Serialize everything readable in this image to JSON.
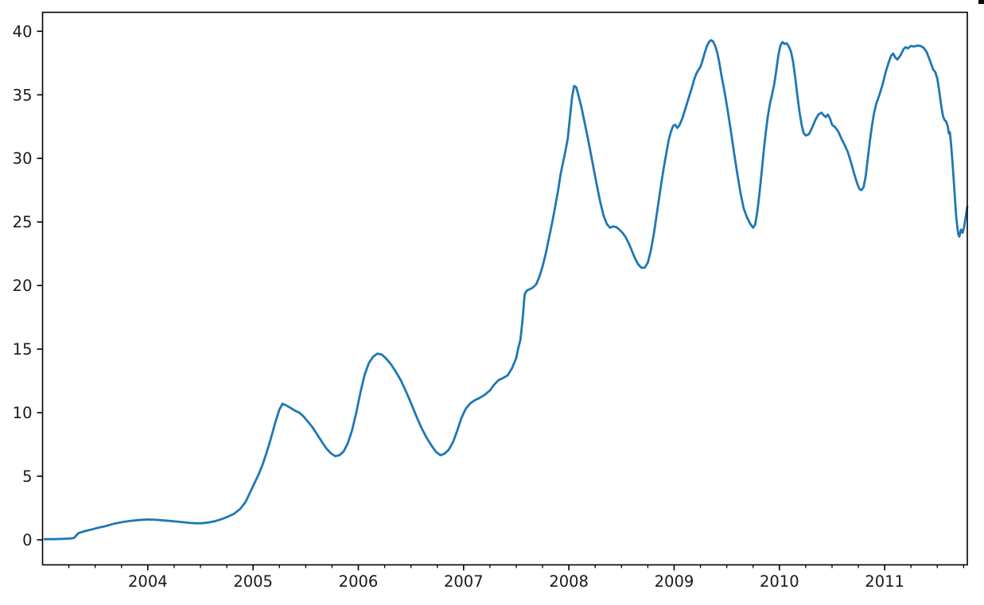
{
  "page": {
    "background": "#ffffff"
  },
  "decorations": {
    "corner_mark_color": "#0a0a0a"
  },
  "chart_data": {
    "type": "line",
    "title": "",
    "xlabel": "",
    "ylabel": "",
    "grid": false,
    "legend": null,
    "x_range": [
      2003.0,
      2011.785
    ],
    "y_range": [
      -1.97,
      41.49
    ],
    "x_major_ticks": [
      {
        "value": 2004,
        "label": "2004"
      },
      {
        "value": 2005,
        "label": "2005"
      },
      {
        "value": 2006,
        "label": "2006"
      },
      {
        "value": 2007,
        "label": "2007"
      },
      {
        "value": 2008,
        "label": "2008"
      },
      {
        "value": 2009,
        "label": "2009"
      },
      {
        "value": 2010,
        "label": "2010"
      },
      {
        "value": 2011,
        "label": "2011"
      }
    ],
    "x_minor_tick_interval": 0.25,
    "y_ticks": [
      {
        "value": 0,
        "label": "0"
      },
      {
        "value": 5,
        "label": "5"
      },
      {
        "value": 10,
        "label": "10"
      },
      {
        "value": 15,
        "label": "15"
      },
      {
        "value": 20,
        "label": "20"
      },
      {
        "value": 25,
        "label": "25"
      },
      {
        "value": 30,
        "label": "30"
      },
      {
        "value": 35,
        "label": "35"
      },
      {
        "value": 40,
        "label": "40"
      }
    ],
    "line_color": "#1f77b4",
    "line_width": 2.8,
    "axis_color": "#000000",
    "tick_label_color": "#1a1a1a",
    "series": [
      {
        "name": "series-1",
        "points": [
          [
            2003.02,
            0.05
          ],
          [
            2003.1,
            0.05
          ],
          [
            2003.18,
            0.07
          ],
          [
            2003.26,
            0.1
          ],
          [
            2003.3,
            0.15
          ],
          [
            2003.34,
            0.52
          ],
          [
            2003.4,
            0.68
          ],
          [
            2003.46,
            0.8
          ],
          [
            2003.52,
            0.93
          ],
          [
            2003.6,
            1.08
          ],
          [
            2003.68,
            1.27
          ],
          [
            2003.76,
            1.4
          ],
          [
            2003.84,
            1.49
          ],
          [
            2003.92,
            1.56
          ],
          [
            2004.0,
            1.6
          ],
          [
            2004.08,
            1.57
          ],
          [
            2004.16,
            1.52
          ],
          [
            2004.24,
            1.46
          ],
          [
            2004.32,
            1.4
          ],
          [
            2004.4,
            1.33
          ],
          [
            2004.46,
            1.3
          ],
          [
            2004.52,
            1.31
          ],
          [
            2004.58,
            1.37
          ],
          [
            2004.64,
            1.47
          ],
          [
            2004.7,
            1.62
          ],
          [
            2004.76,
            1.82
          ],
          [
            2004.82,
            2.05
          ],
          [
            2004.88,
            2.45
          ],
          [
            2004.93,
            3.0
          ],
          [
            2004.97,
            3.7
          ],
          [
            2005.01,
            4.4
          ],
          [
            2005.05,
            5.1
          ],
          [
            2005.09,
            5.9
          ],
          [
            2005.13,
            6.9
          ],
          [
            2005.17,
            8.0
          ],
          [
            2005.21,
            9.2
          ],
          [
            2005.25,
            10.25
          ],
          [
            2005.28,
            10.7
          ],
          [
            2005.32,
            10.55
          ],
          [
            2005.36,
            10.35
          ],
          [
            2005.4,
            10.15
          ],
          [
            2005.44,
            10.0
          ],
          [
            2005.48,
            9.7
          ],
          [
            2005.52,
            9.3
          ],
          [
            2005.56,
            8.9
          ],
          [
            2005.6,
            8.4
          ],
          [
            2005.65,
            7.75
          ],
          [
            2005.7,
            7.15
          ],
          [
            2005.74,
            6.8
          ],
          [
            2005.78,
            6.58
          ],
          [
            2005.82,
            6.65
          ],
          [
            2005.86,
            6.95
          ],
          [
            2005.9,
            7.6
          ],
          [
            2005.94,
            8.6
          ],
          [
            2005.98,
            10.0
          ],
          [
            2006.02,
            11.6
          ],
          [
            2006.06,
            13.0
          ],
          [
            2006.1,
            13.9
          ],
          [
            2006.14,
            14.4
          ],
          [
            2006.18,
            14.65
          ],
          [
            2006.22,
            14.58
          ],
          [
            2006.26,
            14.3
          ],
          [
            2006.31,
            13.8
          ],
          [
            2006.35,
            13.3
          ],
          [
            2006.4,
            12.6
          ],
          [
            2006.44,
            11.9
          ],
          [
            2006.48,
            11.15
          ],
          [
            2006.52,
            10.35
          ],
          [
            2006.56,
            9.55
          ],
          [
            2006.6,
            8.8
          ],
          [
            2006.65,
            8.0
          ],
          [
            2006.7,
            7.35
          ],
          [
            2006.74,
            6.9
          ],
          [
            2006.78,
            6.65
          ],
          [
            2006.82,
            6.78
          ],
          [
            2006.86,
            7.1
          ],
          [
            2006.9,
            7.7
          ],
          [
            2006.94,
            8.6
          ],
          [
            2006.98,
            9.6
          ],
          [
            2007.02,
            10.3
          ],
          [
            2007.06,
            10.7
          ],
          [
            2007.1,
            10.95
          ],
          [
            2007.15,
            11.15
          ],
          [
            2007.2,
            11.4
          ],
          [
            2007.25,
            11.75
          ],
          [
            2007.29,
            12.2
          ],
          [
            2007.33,
            12.55
          ],
          [
            2007.38,
            12.75
          ],
          [
            2007.42,
            12.95
          ],
          [
            2007.46,
            13.5
          ],
          [
            2007.5,
            14.3
          ],
          [
            2007.52,
            15.1
          ],
          [
            2007.54,
            15.75
          ],
          [
            2007.56,
            17.3
          ],
          [
            2007.58,
            19.3
          ],
          [
            2007.6,
            19.6
          ],
          [
            2007.63,
            19.72
          ],
          [
            2007.66,
            19.85
          ],
          [
            2007.69,
            20.1
          ],
          [
            2007.72,
            20.7
          ],
          [
            2007.75,
            21.5
          ],
          [
            2007.78,
            22.5
          ],
          [
            2007.81,
            23.7
          ],
          [
            2007.84,
            24.9
          ],
          [
            2007.87,
            26.2
          ],
          [
            2007.9,
            27.6
          ],
          [
            2007.92,
            28.7
          ],
          [
            2007.94,
            29.5
          ],
          [
            2007.96,
            30.3
          ],
          [
            2007.97,
            30.7
          ],
          [
            2007.99,
            31.6
          ],
          [
            2008.01,
            33.2
          ],
          [
            2008.03,
            34.8
          ],
          [
            2008.05,
            35.7
          ],
          [
            2008.07,
            35.6
          ],
          [
            2008.09,
            35.0
          ],
          [
            2008.12,
            34.0
          ],
          [
            2008.15,
            32.8
          ],
          [
            2008.18,
            31.6
          ],
          [
            2008.21,
            30.3
          ],
          [
            2008.24,
            29.0
          ],
          [
            2008.27,
            27.7
          ],
          [
            2008.3,
            26.5
          ],
          [
            2008.33,
            25.5
          ],
          [
            2008.36,
            24.85
          ],
          [
            2008.39,
            24.55
          ],
          [
            2008.42,
            24.65
          ],
          [
            2008.45,
            24.6
          ],
          [
            2008.48,
            24.4
          ],
          [
            2008.51,
            24.15
          ],
          [
            2008.54,
            23.8
          ],
          [
            2008.57,
            23.3
          ],
          [
            2008.6,
            22.7
          ],
          [
            2008.63,
            22.1
          ],
          [
            2008.66,
            21.65
          ],
          [
            2008.69,
            21.4
          ],
          [
            2008.72,
            21.4
          ],
          [
            2008.75,
            21.8
          ],
          [
            2008.78,
            22.8
          ],
          [
            2008.81,
            24.2
          ],
          [
            2008.84,
            25.9
          ],
          [
            2008.87,
            27.6
          ],
          [
            2008.9,
            29.2
          ],
          [
            2008.93,
            30.6
          ],
          [
            2008.95,
            31.5
          ],
          [
            2008.97,
            32.1
          ],
          [
            2008.99,
            32.55
          ],
          [
            2009.01,
            32.65
          ],
          [
            2009.03,
            32.4
          ],
          [
            2009.05,
            32.6
          ],
          [
            2009.08,
            33.2
          ],
          [
            2009.11,
            34.0
          ],
          [
            2009.14,
            34.8
          ],
          [
            2009.17,
            35.6
          ],
          [
            2009.19,
            36.2
          ],
          [
            2009.21,
            36.65
          ],
          [
            2009.23,
            36.95
          ],
          [
            2009.25,
            37.2
          ],
          [
            2009.27,
            37.7
          ],
          [
            2009.29,
            38.3
          ],
          [
            2009.31,
            38.8
          ],
          [
            2009.33,
            39.15
          ],
          [
            2009.35,
            39.3
          ],
          [
            2009.37,
            39.2
          ],
          [
            2009.39,
            38.85
          ],
          [
            2009.41,
            38.3
          ],
          [
            2009.43,
            37.5
          ],
          [
            2009.45,
            36.5
          ],
          [
            2009.48,
            35.2
          ],
          [
            2009.51,
            33.7
          ],
          [
            2009.54,
            32.1
          ],
          [
            2009.57,
            30.4
          ],
          [
            2009.6,
            28.8
          ],
          [
            2009.63,
            27.3
          ],
          [
            2009.66,
            26.1
          ],
          [
            2009.69,
            25.4
          ],
          [
            2009.72,
            24.9
          ],
          [
            2009.75,
            24.55
          ],
          [
            2009.77,
            24.8
          ],
          [
            2009.79,
            25.8
          ],
          [
            2009.81,
            27.2
          ],
          [
            2009.83,
            28.8
          ],
          [
            2009.85,
            30.5
          ],
          [
            2009.87,
            32.0
          ],
          [
            2009.89,
            33.3
          ],
          [
            2009.91,
            34.3
          ],
          [
            2009.93,
            35.0
          ],
          [
            2009.95,
            35.8
          ],
          [
            2009.97,
            36.9
          ],
          [
            2009.99,
            38.1
          ],
          [
            2010.01,
            38.9
          ],
          [
            2010.03,
            39.15
          ],
          [
            2010.05,
            39.0
          ],
          [
            2010.07,
            39.05
          ],
          [
            2010.09,
            38.8
          ],
          [
            2010.11,
            38.4
          ],
          [
            2010.13,
            37.6
          ],
          [
            2010.15,
            36.4
          ],
          [
            2010.17,
            35.0
          ],
          [
            2010.19,
            33.7
          ],
          [
            2010.21,
            32.7
          ],
          [
            2010.23,
            32.0
          ],
          [
            2010.25,
            31.8
          ],
          [
            2010.28,
            31.9
          ],
          [
            2010.31,
            32.4
          ],
          [
            2010.34,
            33.0
          ],
          [
            2010.37,
            33.45
          ],
          [
            2010.4,
            33.6
          ],
          [
            2010.42,
            33.4
          ],
          [
            2010.44,
            33.25
          ],
          [
            2010.46,
            33.45
          ],
          [
            2010.48,
            33.15
          ],
          [
            2010.5,
            32.65
          ],
          [
            2010.53,
            32.45
          ],
          [
            2010.56,
            32.1
          ],
          [
            2010.59,
            31.55
          ],
          [
            2010.62,
            31.05
          ],
          [
            2010.65,
            30.5
          ],
          [
            2010.68,
            29.7
          ],
          [
            2010.71,
            28.8
          ],
          [
            2010.74,
            28.0
          ],
          [
            2010.76,
            27.6
          ],
          [
            2010.78,
            27.5
          ],
          [
            2010.8,
            27.75
          ],
          [
            2010.82,
            28.6
          ],
          [
            2010.84,
            30.0
          ],
          [
            2010.86,
            31.4
          ],
          [
            2010.88,
            32.6
          ],
          [
            2010.9,
            33.6
          ],
          [
            2010.92,
            34.3
          ],
          [
            2010.95,
            35.0
          ],
          [
            2010.98,
            35.8
          ],
          [
            2011.01,
            36.8
          ],
          [
            2011.04,
            37.6
          ],
          [
            2011.06,
            38.05
          ],
          [
            2011.08,
            38.25
          ],
          [
            2011.1,
            37.95
          ],
          [
            2011.12,
            37.78
          ],
          [
            2011.15,
            38.1
          ],
          [
            2011.18,
            38.6
          ],
          [
            2011.2,
            38.75
          ],
          [
            2011.22,
            38.65
          ],
          [
            2011.25,
            38.85
          ],
          [
            2011.28,
            38.8
          ],
          [
            2011.31,
            38.88
          ],
          [
            2011.34,
            38.85
          ],
          [
            2011.37,
            38.7
          ],
          [
            2011.4,
            38.35
          ],
          [
            2011.43,
            37.7
          ],
          [
            2011.46,
            37.0
          ],
          [
            2011.48,
            36.8
          ],
          [
            2011.5,
            36.3
          ],
          [
            2011.52,
            35.2
          ],
          [
            2011.54,
            34.0
          ],
          [
            2011.555,
            33.3
          ],
          [
            2011.57,
            33.0
          ],
          [
            2011.585,
            32.9
          ],
          [
            2011.6,
            32.5
          ],
          [
            2011.61,
            31.95
          ],
          [
            2011.62,
            32.05
          ],
          [
            2011.632,
            31.0
          ],
          [
            2011.645,
            29.6
          ],
          [
            2011.657,
            28.2
          ],
          [
            2011.668,
            26.8
          ],
          [
            2011.679,
            25.5
          ],
          [
            2011.69,
            24.6
          ],
          [
            2011.7,
            24.0
          ],
          [
            2011.71,
            23.85
          ],
          [
            2011.725,
            24.4
          ],
          [
            2011.74,
            24.15
          ],
          [
            2011.755,
            24.6
          ],
          [
            2011.77,
            25.4
          ],
          [
            2011.785,
            26.2
          ]
        ]
      }
    ]
  }
}
